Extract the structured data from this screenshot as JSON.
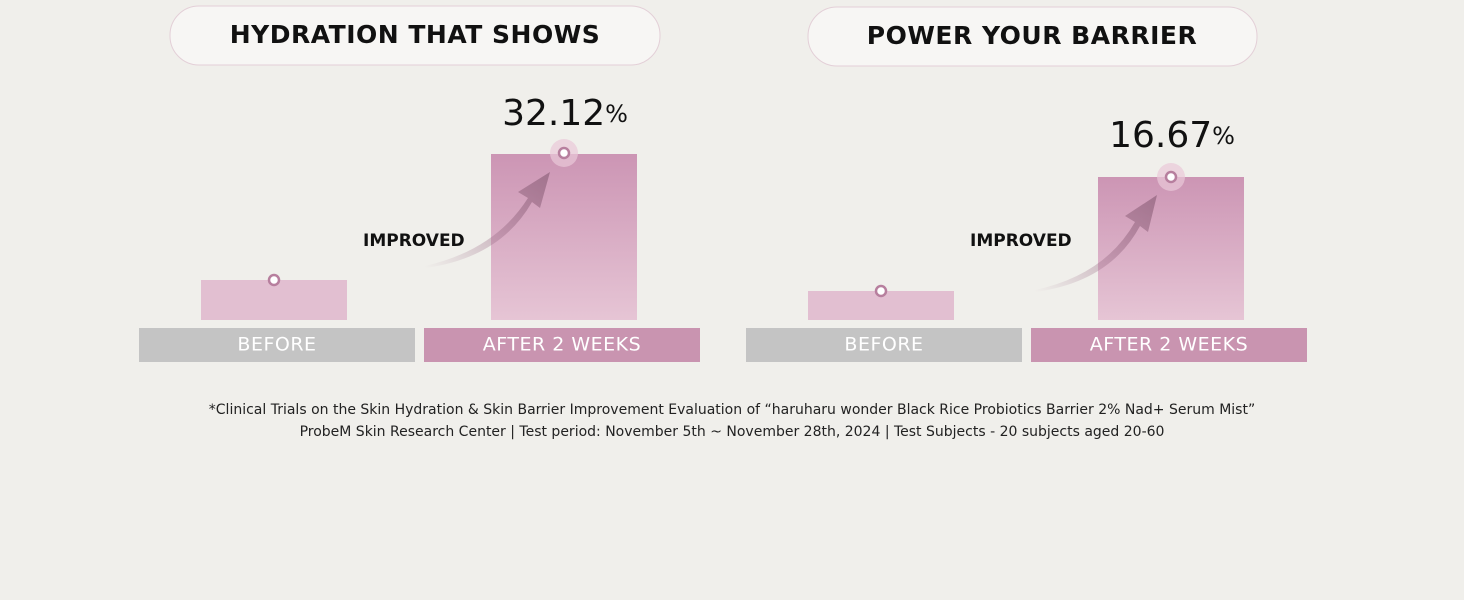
{
  "panels": [
    {
      "title": "HYDRATION THAT SHOWS",
      "value": "32.12",
      "unit": "%",
      "annotation": "IMPROVED",
      "labels": [
        "BEFORE",
        "AFTER 2 WEEKS"
      ]
    },
    {
      "title": "POWER YOUR BARRIER",
      "value": "16.67",
      "unit": "%",
      "annotation": "IMPROVED",
      "labels": [
        "BEFORE",
        "AFTER 2 WEEKS"
      ]
    }
  ],
  "footnote": [
    "*Clinical Trials on the Skin Hydration & Skin Barrier Improvement Evaluation of “haruharu wonder Black Rice Probiotics Barrier 2% Nad+ Serum Mist”",
    "ProbeM Skin Research Center | Test period: November 5th ~ November 28th, 2024 | Test Subjects - 20 subjects aged 20-60"
  ]
}
